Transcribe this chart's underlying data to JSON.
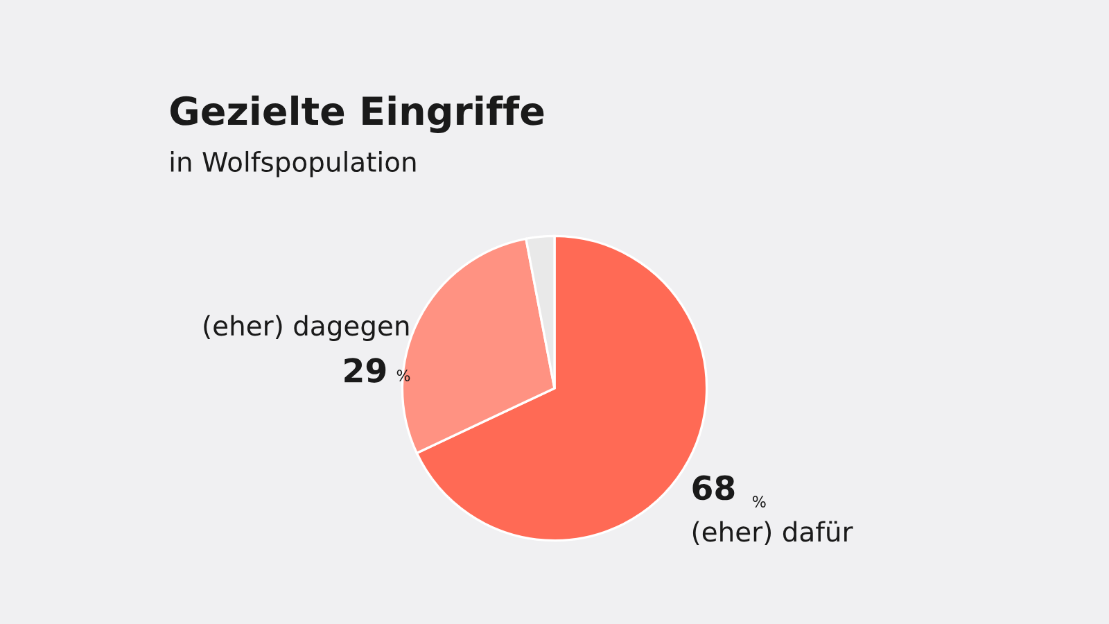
{
  "chart_data": {
    "type": "pie",
    "title": "Gezielte Eingriffe",
    "subtitle": "in Wolfspopulation",
    "categories": [
      "(eher) dafür",
      "(eher) dagegen",
      null
    ],
    "values": [
      68,
      29,
      3
    ],
    "colors": [
      "#ff6a55",
      "#ff9282",
      "#e9e9e9"
    ],
    "value_labels": [
      "68 %",
      "29 %",
      null
    ],
    "legend": false
  }
}
